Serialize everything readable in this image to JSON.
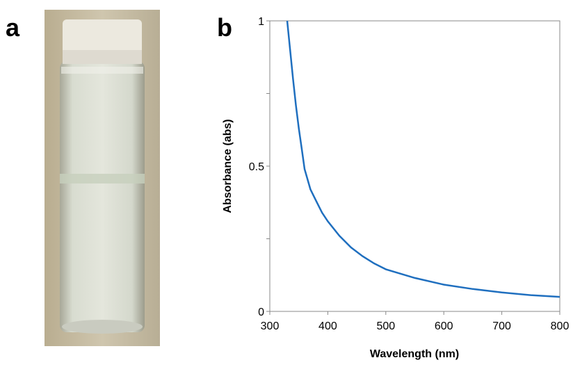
{
  "panel_a": {
    "label": "a"
  },
  "chart_data": {
    "type": "line",
    "panel_label": "b",
    "x_label": "Wavelength (nm)",
    "y_label": "Absorbance (abs)",
    "x": [
      330,
      335,
      340,
      345,
      350,
      355,
      360,
      370,
      380,
      390,
      400,
      420,
      440,
      460,
      480,
      500,
      550,
      600,
      650,
      700,
      750,
      800
    ],
    "series": [
      {
        "color": "#1f6fbf",
        "values": [
          1.0,
          0.9,
          0.8,
          0.71,
          0.63,
          0.56,
          0.49,
          0.42,
          0.38,
          0.34,
          0.31,
          0.26,
          0.22,
          0.19,
          0.165,
          0.145,
          0.115,
          0.092,
          0.077,
          0.065,
          0.056,
          0.05
        ]
      }
    ],
    "xlim": [
      300,
      800
    ],
    "xticks": [
      300,
      400,
      500,
      600,
      700,
      800
    ],
    "ylim": [
      0,
      1
    ],
    "yticks": [
      0,
      0.5,
      1
    ],
    "yticks_minor": [
      0.25,
      0.75
    ]
  }
}
